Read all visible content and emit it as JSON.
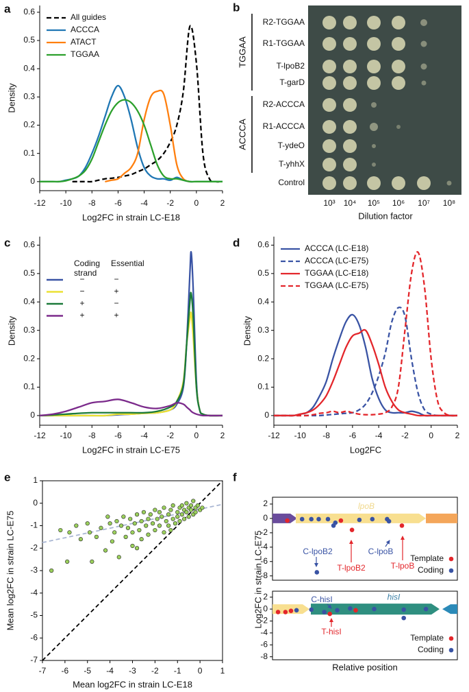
{
  "chart_data": [
    {
      "label": "a",
      "type": "line",
      "xlabel": "Log2FC in strain LC-E18",
      "ylabel": "Density",
      "xlim": [
        -12,
        2
      ],
      "ylim": [
        -0.032,
        0.624
      ],
      "xticks": [
        -12,
        -10,
        -8,
        -6,
        -4,
        -2,
        0,
        2
      ],
      "yticks": [
        0,
        0.1,
        0.2,
        0.3,
        0.4,
        0.5,
        0.6
      ],
      "legend": "upper left",
      "x": [
        -12,
        -11.5,
        -11,
        -10.5,
        -10,
        -9.5,
        -9,
        -8.5,
        -8,
        -7.5,
        -7,
        -6.5,
        -6,
        -5.5,
        -5,
        -4.5,
        -4,
        -3.5,
        -3,
        -2.5,
        -2,
        -1.5,
        -1,
        -0.5,
        0,
        0.5,
        1,
        1.5,
        2
      ],
      "series": [
        {
          "name": "All guides",
          "color": "#000000",
          "dashed": true,
          "values": [
            null,
            null,
            null,
            null,
            null,
            0,
            0,
            0,
            0,
            0.005,
            0.01,
            0.012,
            0.015,
            0.02,
            0.025,
            0.035,
            0.045,
            0.06,
            0.075,
            0.1,
            0.14,
            0.2,
            0.32,
            0.55,
            0.42,
            0.1,
            0.01,
            0,
            0
          ]
        },
        {
          "name": "ACCCA",
          "color": "#1f77b4",
          "dashed": false,
          "values": [
            0,
            0,
            0,
            0,
            0.005,
            0.01,
            0.02,
            0.05,
            0.1,
            0.16,
            0.23,
            0.3,
            0.34,
            0.3,
            0.22,
            0.12,
            0.05,
            0.02,
            0.01,
            0.01,
            0.005,
            0.015,
            0.005,
            0,
            0,
            0,
            0,
            0,
            0
          ]
        },
        {
          "name": "ATACT",
          "color": "#ff7f0e",
          "dashed": false,
          "values": [
            null,
            null,
            null,
            null,
            null,
            null,
            null,
            null,
            null,
            null,
            0,
            0.005,
            0.01,
            0.03,
            0.05,
            0.1,
            0.22,
            0.3,
            0.32,
            0.31,
            0.2,
            0.06,
            0.01,
            0,
            null,
            null,
            null,
            null,
            null
          ]
        },
        {
          "name": "TGGAA",
          "color": "#2ca02c",
          "dashed": false,
          "values": [
            0,
            0,
            0,
            0,
            0.003,
            0.01,
            0.02,
            0.04,
            0.08,
            0.14,
            0.2,
            0.25,
            0.28,
            0.29,
            0.28,
            0.25,
            0.2,
            0.13,
            0.06,
            0.02,
            0.01,
            0.01,
            0.005,
            0,
            0,
            0,
            0,
            0,
            0
          ]
        }
      ]
    },
    {
      "label": "b",
      "type": "image",
      "xlabel": "Dilution factor",
      "rows": [
        "R2-TGGAA",
        "R1-TGGAA",
        "T-lpoB2",
        "T-garD",
        "R2-ACCCA",
        "R1-ACCCA",
        "T-ydeO",
        "T-yhhX",
        "Control"
      ],
      "groups": [
        "TGGAA",
        "ACCCA"
      ],
      "column_labels": [
        "10³",
        "10⁴",
        "10⁵",
        "10⁶",
        "10⁷",
        "10⁸"
      ]
    },
    {
      "label": "c",
      "type": "line",
      "xlabel": "Log2FC in strain LC-E75",
      "ylabel": "Density",
      "xlim": [
        -12,
        2
      ],
      "ylim": [
        -0.034,
        0.63
      ],
      "xticks": [
        -12,
        -10,
        -8,
        -6,
        -4,
        -2,
        0,
        2
      ],
      "yticks": [
        0,
        0.1,
        0.2,
        0.3,
        0.4,
        0.5,
        0.6
      ],
      "legend": "upper left",
      "legend_headers": [
        "Coding strand",
        "Essential"
      ],
      "x": [
        -12,
        -11,
        -10,
        -9,
        -8,
        -7,
        -6,
        -5,
        -4,
        -3,
        -2,
        -1.5,
        -1,
        -0.75,
        -0.5,
        -0.4,
        -0.25,
        0,
        0.25,
        0.5,
        1,
        2
      ],
      "series": [
        {
          "coding_strand": "−",
          "essential": "−",
          "color": "#3953a4",
          "dashed": false,
          "values": [
            0,
            0,
            0,
            0,
            0,
            0,
            0.003,
            0.005,
            0.008,
            0.01,
            0.02,
            0.04,
            0.1,
            0.25,
            0.5,
            0.575,
            0.45,
            0.12,
            0.02,
            0.005,
            0,
            0
          ]
        },
        {
          "coding_strand": "−",
          "essential": "+",
          "color": "#ece133",
          "dashed": false,
          "values": [
            0,
            0,
            0,
            0,
            0,
            0,
            0.005,
            0.005,
            0.008,
            0.01,
            0.02,
            0.05,
            0.12,
            0.25,
            0.34,
            0.36,
            0.28,
            0.1,
            0.02,
            0.005,
            0,
            0
          ]
        },
        {
          "coding_strand": "+",
          "essential": "−",
          "color": "#1b7a3a",
          "dashed": false,
          "values": [
            0,
            0.002,
            0.005,
            0.008,
            0.01,
            0.01,
            0.01,
            0.01,
            0.01,
            0.015,
            0.03,
            0.05,
            0.11,
            0.25,
            0.4,
            0.43,
            0.35,
            0.1,
            0.02,
            0.005,
            0,
            0
          ]
        },
        {
          "coding_strand": "+",
          "essential": "+",
          "color": "#7b2a8b",
          "dashed": false,
          "values": [
            0,
            0.005,
            0.015,
            0.03,
            0.045,
            0.05,
            0.057,
            0.045,
            0.03,
            0.025,
            0.035,
            0.045,
            0.04,
            0.03,
            0.02,
            0.015,
            0.01,
            0.005,
            0.002,
            0,
            0,
            0
          ]
        }
      ]
    },
    {
      "label": "d",
      "type": "line",
      "xlabel": "Log2FC",
      "ylabel": "Density",
      "xlim": [
        -12,
        2
      ],
      "ylim": [
        -0.034,
        0.63
      ],
      "xticks": [
        -12,
        -10,
        -8,
        -6,
        -4,
        -2,
        0,
        2
      ],
      "yticks": [
        0,
        0.1,
        0.2,
        0.3,
        0.4,
        0.5,
        0.6
      ],
      "legend": "upper left",
      "x": [
        -12,
        -11.5,
        -11,
        -10.5,
        -10,
        -9.5,
        -9,
        -8.5,
        -8,
        -7.5,
        -7,
        -6.5,
        -6,
        -5.5,
        -5,
        -4.5,
        -4,
        -3.5,
        -3,
        -2.5,
        -2,
        -1.5,
        -1,
        -0.5,
        0,
        0.5,
        1,
        1.5,
        2
      ],
      "series": [
        {
          "name": "ACCCA (LC-E18)",
          "color": "#3953a4",
          "dashed": false,
          "values": [
            0,
            0,
            0,
            0,
            0.005,
            0.01,
            0.03,
            0.07,
            0.12,
            0.2,
            0.27,
            0.33,
            0.355,
            0.32,
            0.24,
            0.13,
            0.06,
            0.02,
            0.01,
            0.01,
            0.01,
            0.015,
            0.01,
            0,
            0,
            0,
            0,
            0,
            0
          ]
        },
        {
          "name": "ACCCA (LC-E75)",
          "color": "#3953a4",
          "dashed": true,
          "values": [
            0,
            0,
            0,
            0,
            0,
            0,
            0,
            0,
            0.002,
            0.004,
            0.006,
            0.008,
            0.01,
            0.02,
            0.04,
            0.08,
            0.14,
            0.22,
            0.33,
            0.38,
            0.35,
            0.2,
            0.08,
            0.02,
            0.005,
            0,
            0,
            0,
            0
          ]
        },
        {
          "name": "TGGAA (LC-E18)",
          "color": "#e3262b",
          "dashed": false,
          "values": [
            0,
            0,
            0,
            0,
            0.005,
            0.01,
            0.02,
            0.04,
            0.07,
            0.12,
            0.18,
            0.24,
            0.28,
            0.29,
            0.3,
            0.25,
            0.18,
            0.1,
            0.05,
            0.02,
            0.01,
            0.005,
            0,
            0,
            0,
            0,
            0,
            0,
            0
          ]
        },
        {
          "name": "TGGAA (LC-E75)",
          "color": "#e3262b",
          "dashed": true,
          "values": [
            0,
            0,
            0,
            0,
            0,
            0,
            0.003,
            0.008,
            0.01,
            0.015,
            0.01,
            0.015,
            0.01,
            0.005,
            0.003,
            0.003,
            0.005,
            0.01,
            0.03,
            0.1,
            0.3,
            0.5,
            0.575,
            0.45,
            0.2,
            0.05,
            0.01,
            0,
            0
          ]
        }
      ]
    },
    {
      "label": "e",
      "type": "scatter",
      "xlabel": "Mean log2FC in strain LC-E18",
      "ylabel": "Mean log2FC in strain LC-E75",
      "xlim": [
        -7,
        1
      ],
      "ylim": [
        -7,
        1
      ],
      "xticks": [
        -7,
        -6,
        -5,
        -4,
        -3,
        -2,
        -1,
        0,
        1
      ],
      "yticks": [
        -7,
        -6,
        -5,
        -4,
        -3,
        -2,
        -1,
        0,
        1
      ],
      "lines": [
        {
          "color": "#000000",
          "dashed": true,
          "x": [
            -7,
            1
          ],
          "y": [
            -7,
            1
          ]
        },
        {
          "color": "#a9b6d3",
          "dashed": true,
          "x": [
            -7,
            1
          ],
          "y": [
            -1.75,
            -0.05
          ]
        }
      ],
      "series": [
        {
          "color": "#9bd05c",
          "x": [
            -6.6,
            -6.2,
            -5.8,
            -5.5,
            -5.3,
            -5.0,
            -4.9,
            -4.6,
            -4.4,
            -4.2,
            -4.1,
            -4.0,
            -3.9,
            -3.8,
            -3.7,
            -3.6,
            -3.5,
            -3.4,
            -3.3,
            -3.2,
            -3.1,
            -3.0,
            -3.0,
            -2.9,
            -2.8,
            -2.7,
            -2.6,
            -2.6,
            -2.5,
            -2.4,
            -2.3,
            -2.3,
            -2.2,
            -2.1,
            -2.0,
            -2.0,
            -1.9,
            -1.8,
            -1.8,
            -1.7,
            -1.6,
            -1.6,
            -1.5,
            -1.4,
            -1.4,
            -1.3,
            -1.2,
            -1.2,
            -1.1,
            -1.0,
            -1.0,
            -0.9,
            -0.9,
            -0.8,
            -0.8,
            -0.7,
            -0.7,
            -0.6,
            -0.6,
            -0.5,
            -0.5,
            -0.4,
            -0.4,
            -0.3,
            -0.3,
            -0.2,
            -0.2,
            -0.1,
            0.0,
            0.1,
            -1.3,
            -2.8,
            -5.9,
            -4.8
          ],
          "y": [
            -3.0,
            -1.2,
            -1.3,
            -1.0,
            -1.6,
            -0.9,
            -1.3,
            -1.5,
            -1.1,
            -2.1,
            -0.6,
            -0.9,
            -1.7,
            -1.3,
            -0.8,
            -2.4,
            -1.0,
            -0.6,
            -1.5,
            -1.1,
            -0.7,
            -1.9,
            -1.3,
            -0.9,
            -0.5,
            -1.2,
            -1.6,
            -0.8,
            -0.4,
            -1.0,
            -0.7,
            -1.4,
            -0.5,
            -0.9,
            -1.2,
            -0.3,
            -0.7,
            -1.0,
            -0.4,
            -0.6,
            -1.3,
            -0.2,
            -0.8,
            -0.5,
            -1.0,
            -0.3,
            -0.7,
            -0.1,
            -0.9,
            -0.4,
            -0.6,
            -0.2,
            -0.8,
            -0.5,
            -0.1,
            -0.3,
            -0.7,
            -0.4,
            0.0,
            -0.2,
            -0.6,
            -0.3,
            -0.1,
            -0.5,
            0.1,
            -0.2,
            -0.4,
            -0.1,
            -0.3,
            -0.2,
            -1.2,
            -2.0,
            -2.6,
            -2.6
          ]
        }
      ]
    },
    {
      "label": "f",
      "type": "scatter",
      "xlabel": "Relative position",
      "ylabel": "Log2FC in strain LC-E75",
      "xlim": [
        0,
        1
      ],
      "panels": [
        {
          "gene": "lpoB",
          "ylim": [
            -8.6,
            2.95
          ],
          "yticks": [
            -8,
            -6,
            -4,
            -2,
            0,
            2
          ],
          "annotations": [
            "C-lpoB2",
            "T-lpoB2",
            "C-lpoB",
            "T-lpoB"
          ],
          "series": [
            {
              "name": "Template",
              "color": "#e3262b",
              "x": [
                0.08,
                0.37,
                0.43,
                0.7
              ],
              "y": [
                -0.3,
                -0.3,
                -1.6,
                -1.0
              ]
            },
            {
              "name": "Coding",
              "color": "#3953a4",
              "x": [
                0.16,
                0.21,
                0.25,
                0.3,
                0.33,
                0.34,
                0.24,
                0.47,
                0.54,
                0.62,
                0.63
              ],
              "y": [
                -0.1,
                -0.1,
                -0.1,
                -0.1,
                -1.0,
                -0.6,
                -7.5,
                -0.2,
                -0.1,
                -0.1,
                -0.4
              ]
            }
          ]
        },
        {
          "gene": "hisI",
          "ylim": [
            -8.5,
            3.0
          ],
          "yticks": [
            -8,
            -6,
            -4,
            -2,
            0,
            2
          ],
          "annotations": [
            "C-hisI",
            "T-hisI"
          ],
          "series": [
            {
              "name": "Template",
              "color": "#e3262b",
              "x": [
                0.03,
                0.07,
                0.1,
                0.31,
                0.45
              ],
              "y": [
                -0.5,
                -0.5,
                -0.3,
                -0.8,
                -0.2
              ]
            },
            {
              "name": "Coding",
              "color": "#3953a4",
              "x": [
                0.13,
                0.21,
                0.28,
                0.35,
                0.42,
                0.55,
                0.71,
                0.71,
                0.83
              ],
              "y": [
                -0.2,
                -0.1,
                -0.5,
                -0.2,
                0.1,
                0.0,
                -0.1,
                -1.5,
                0.0
              ]
            }
          ]
        }
      ]
    }
  ]
}
